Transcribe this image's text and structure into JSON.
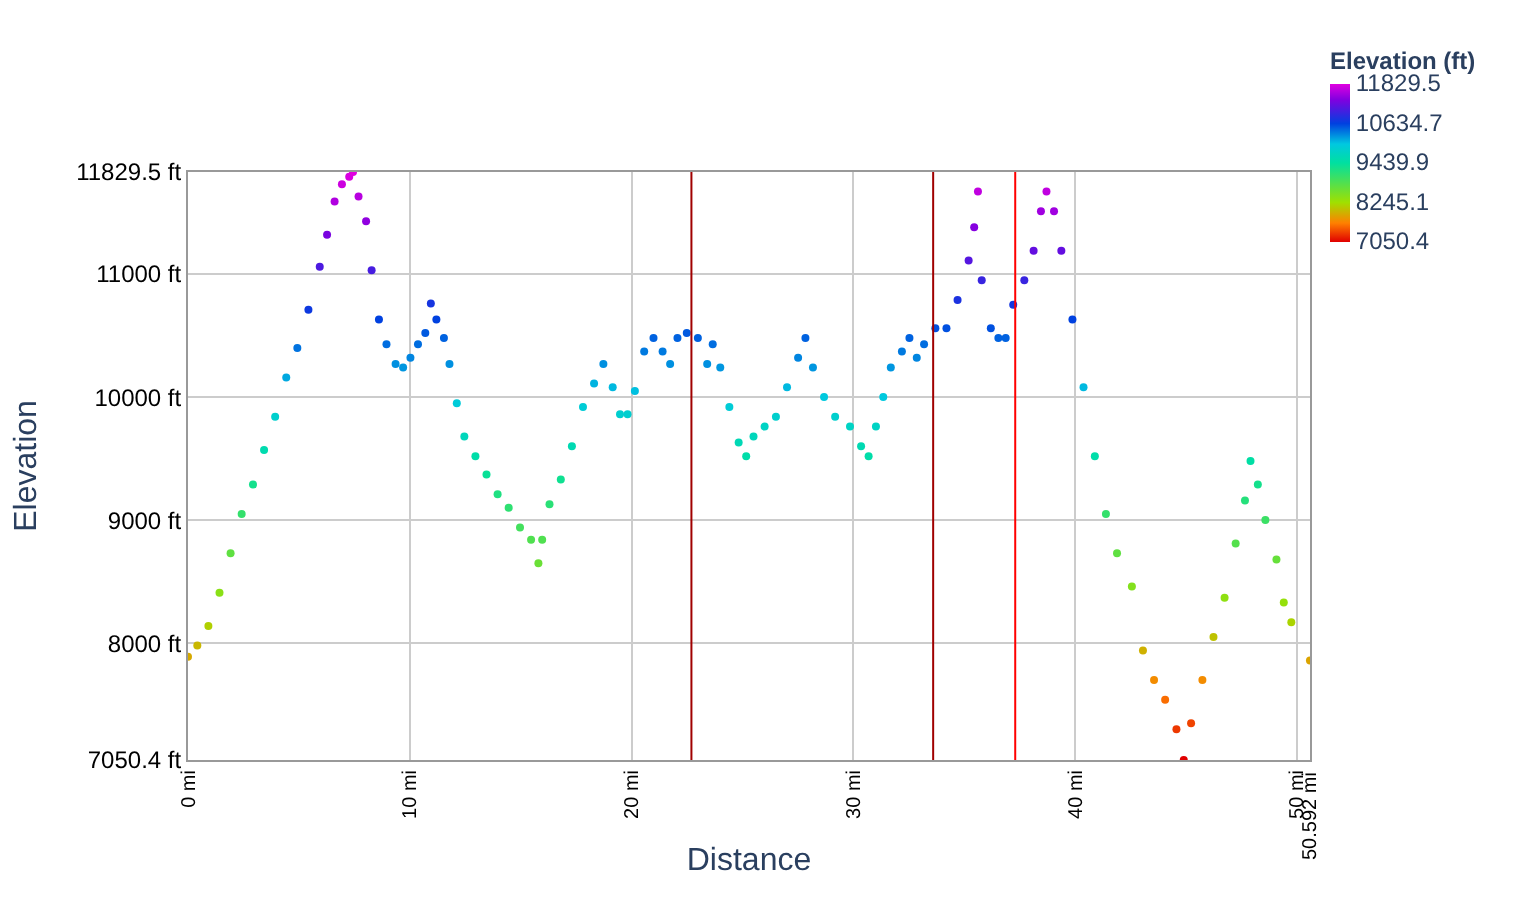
{
  "chart_data": {
    "type": "scatter",
    "xlabel": "Distance",
    "ylabel": "Elevation",
    "clabel": "Elevation (ft)",
    "x": [
      0,
      0.42,
      0.92,
      1.42,
      1.92,
      2.42,
      2.93,
      3.43,
      3.93,
      4.43,
      4.93,
      5.43,
      5.94,
      6.27,
      6.61,
      6.94,
      7.27,
      7.44,
      7.69,
      8.03,
      8.28,
      8.61,
      8.95,
      9.36,
      9.7,
      10.03,
      10.37,
      10.7,
      10.95,
      11.2,
      11.54,
      11.79,
      12.12,
      12.46,
      12.96,
      13.46,
      13.96,
      14.46,
      14.97,
      15.47,
      15.8,
      15.97,
      16.3,
      16.81,
      17.31,
      17.81,
      18.31,
      18.73,
      19.15,
      19.48,
      19.82,
      20.15,
      20.57,
      20.99,
      21.4,
      21.74,
      22.07,
      22.49,
      22.99,
      23.41,
      23.66,
      24.0,
      24.41,
      24.83,
      25.17,
      25.5,
      26.0,
      26.51,
      27.01,
      27.51,
      27.84,
      28.18,
      28.68,
      29.18,
      29.85,
      30.35,
      30.69,
      31.02,
      31.35,
      31.69,
      32.19,
      32.53,
      32.86,
      33.19,
      33.7,
      34.2,
      34.7,
      35.2,
      35.45,
      35.62,
      35.79,
      36.2,
      36.54,
      36.87,
      37.21,
      37.71,
      38.13,
      38.46,
      38.71,
      39.05,
      39.38,
      39.88,
      40.38,
      40.89,
      41.39,
      41.89,
      42.56,
      43.06,
      43.56,
      44.06,
      44.57,
      44.9,
      45.23,
      45.74,
      46.24,
      46.74,
      47.24,
      47.66,
      47.91,
      48.24,
      48.58,
      49.08,
      49.41,
      49.75,
      50.59
    ],
    "values": [
      7890,
      7980,
      8140,
      8410,
      8730,
      9050,
      9290,
      9570,
      9840,
      10160,
      10400,
      10710,
      11060,
      11320,
      11590,
      11730,
      11790,
      11829.5,
      11630,
      11430,
      11030,
      10630,
      10430,
      10270,
      10240,
      10320,
      10430,
      10520,
      10760,
      10630,
      10480,
      10270,
      9950,
      9680,
      9520,
      9370,
      9210,
      9100,
      8940,
      8840,
      8650,
      8840,
      9130,
      9330,
      9600,
      9920,
      10110,
      10270,
      10080,
      9860,
      9860,
      10050,
      10370,
      10480,
      10370,
      10270,
      10480,
      10520,
      10480,
      10270,
      10430,
      10240,
      9920,
      9630,
      9520,
      9680,
      9760,
      9840,
      10080,
      10320,
      10480,
      10240,
      10000,
      9840,
      9760,
      9600,
      9520,
      9760,
      10000,
      10240,
      10370,
      10480,
      10320,
      10430,
      10560,
      10560,
      10790,
      11110,
      11380,
      11670,
      10950,
      10560,
      10480,
      10480,
      10750,
      10950,
      11190,
      11510,
      11670,
      11510,
      11190,
      10630,
      10080,
      9520,
      9050,
      8730,
      8460,
      7940,
      7700,
      7540,
      7300,
      7050.4,
      7350,
      7700,
      8050,
      8370,
      8810,
      9160,
      9480,
      9290,
      9000,
      8680,
      8330,
      8170,
      7860
    ],
    "cvalues": [
      7890,
      7980,
      8140,
      8410,
      8730,
      9050,
      9290,
      9570,
      9840,
      10160,
      10400,
      10710,
      11060,
      11320,
      11590,
      11730,
      11790,
      11829.5,
      11630,
      11430,
      11030,
      10630,
      10430,
      10270,
      10240,
      10320,
      10430,
      10520,
      10760,
      10630,
      10480,
      10270,
      9950,
      9680,
      9520,
      9370,
      9210,
      9100,
      8940,
      8840,
      8650,
      8840,
      9130,
      9330,
      9600,
      9920,
      10110,
      10270,
      10080,
      9860,
      9860,
      10050,
      10370,
      10480,
      10370,
      10270,
      10480,
      10520,
      10480,
      10270,
      10430,
      10240,
      9920,
      9630,
      9520,
      9680,
      9760,
      9840,
      10080,
      10320,
      10480,
      10240,
      10000,
      9840,
      9760,
      9600,
      9520,
      9760,
      10000,
      10240,
      10370,
      10480,
      10320,
      10430,
      10560,
      10560,
      10790,
      11110,
      11380,
      11670,
      10950,
      10560,
      10480,
      10480,
      10750,
      10950,
      11190,
      11510,
      11670,
      11510,
      11190,
      10630,
      10080,
      9520,
      9050,
      8730,
      8460,
      7940,
      7700,
      7540,
      7300,
      7050.4,
      7350,
      7700,
      8050,
      8370,
      8810,
      9160,
      9480,
      9290,
      9000,
      8680,
      8330,
      8170,
      7860
    ],
    "clim": [
      7050.4,
      11829.5
    ],
    "cticks": [
      7050.4,
      8245.1,
      9439.9,
      10634.7,
      11829.5
    ],
    "xlim": [
      0,
      50.592
    ],
    "xticks": [
      {
        "value": 0,
        "label": "0 mi"
      },
      {
        "value": 10,
        "label": "10 mi"
      },
      {
        "value": 20,
        "label": "20 mi"
      },
      {
        "value": 30,
        "label": "30 mi"
      },
      {
        "value": 40,
        "label": "40 mi"
      },
      {
        "value": 50,
        "label": "50 mi"
      },
      {
        "value": 50.592,
        "label": "50.592 mi"
      }
    ],
    "ylim": [
      7050.4,
      11829.5
    ],
    "yticks": [
      {
        "value": 7050.4,
        "label": "7050.4 ft"
      },
      {
        "value": 8000,
        "label": "8000 ft"
      },
      {
        "value": 9000,
        "label": "9000 ft"
      },
      {
        "value": 10000,
        "label": "10000 ft"
      },
      {
        "value": 11000,
        "label": "11000 ft"
      },
      {
        "value": 11829.5,
        "label": "11829.5 ft"
      }
    ],
    "ref_lines": [
      {
        "axis": "x",
        "value": 22.7,
        "color": "#a00000"
      },
      {
        "axis": "x",
        "value": 33.6,
        "color": "#a00000"
      },
      {
        "axis": "x",
        "value": 37.3,
        "color": "#ff0000"
      }
    ],
    "grid": true,
    "marker": "circle"
  }
}
